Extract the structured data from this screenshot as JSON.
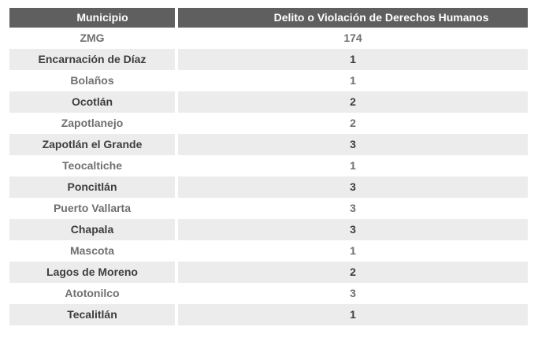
{
  "chart_data": {
    "type": "table",
    "title": "",
    "columns": [
      "Municipio",
      "Delito o Violación de Derechos Humanos"
    ],
    "rows": [
      [
        "ZMG",
        174
      ],
      [
        "Encarnación de Díaz",
        1
      ],
      [
        "Bolaños",
        1
      ],
      [
        "Ocotlán",
        2
      ],
      [
        "Zapotlanejo",
        2
      ],
      [
        "Zapotlán el Grande",
        3
      ],
      [
        "Teocaltiche",
        1
      ],
      [
        "Poncitlán",
        3
      ],
      [
        "Puerto Vallarta",
        3
      ],
      [
        "Chapala",
        3
      ],
      [
        "Mascota",
        1
      ],
      [
        "Lagos de Moreno",
        2
      ],
      [
        "Atotonilco",
        3
      ],
      [
        "Tecalitlán",
        1
      ]
    ],
    "layout": {
      "striped": true,
      "stripe_pattern": "even-rows-shaded",
      "header_divider": "white-vertical-gap"
    }
  },
  "colors": {
    "header_bg": "#5f5f5f",
    "header_text": "#ffffff",
    "row_bg": "#ffffff",
    "row_alt_bg": "#ececec",
    "text_dark": "#3d3d3d",
    "text_light": "#6f6f6f"
  }
}
